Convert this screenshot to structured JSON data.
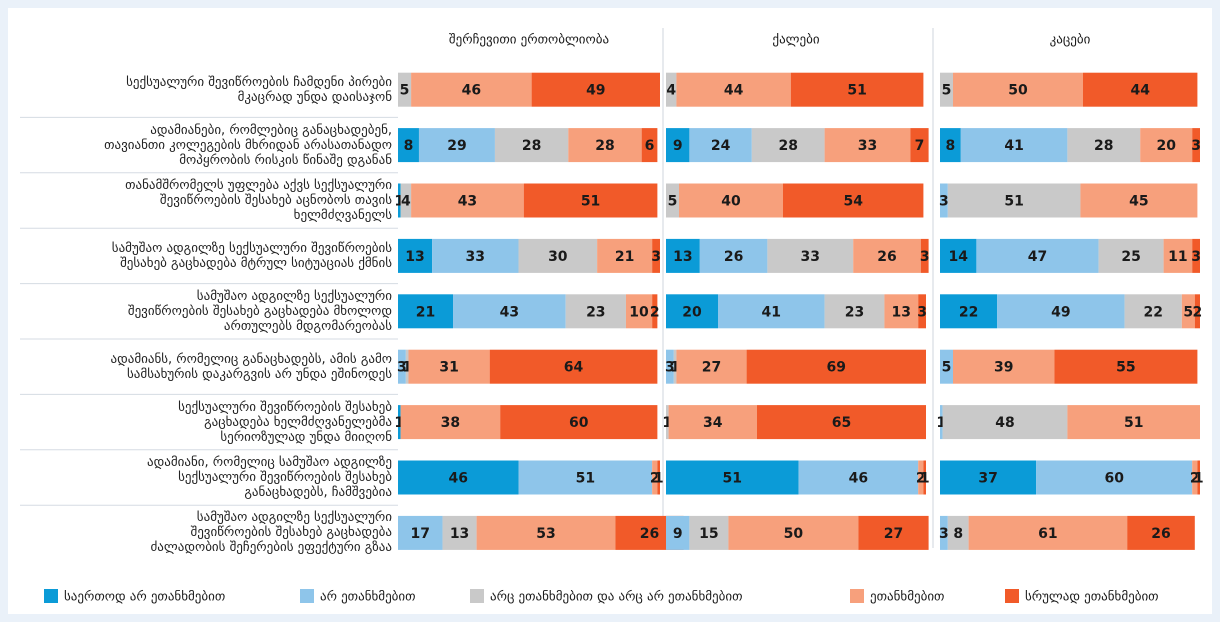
{
  "chart_data": {
    "type": "bar",
    "orientation": "horizontal",
    "stacked": true,
    "xlim": [
      0,
      100
    ],
    "categories": [
      "სექსუალური შევიწროების ჩამდენი პირები\nმკაცრად უნდა დაისაჯონ",
      "ადამიანები, რომლებიც განაცხადებენ,\nთავიანთი კოლეგების მხრიდან არასათანადო\nმოპყრობის რისკის წინაშე დგანან",
      "თანამშრომელს უფლება აქვს სექსუალური\nშევიწროების შესახებ აცნობოს თავის\nხელმძღვანელს",
      "სამუშაო ადგილზე სექსუალური შევიწროების\nშესახებ გაცხადება მტრულ სიტუაციას ქმნის",
      "სამუშაო ადგილზე სექსუალური\nშევიწროების  შესახებ გაცხადება მხოლოდ\nართულებს მდგომარეობას",
      "ადამიანს, რომელიც განაცხადებს, ამის გამო\nსამსახურის დაკარგვის არ უნდა ეშინოდეს",
      "სექსუალური შევიწროების შესახებ\nგაცხადება ხელმძღვანელებმა\nსერიოზულად უნდა მიიღონ",
      "ადამიანი, რომელიც სამუშაო ადგილზე\nსექსუალური შევიწროების შესახებ\nგანაცხადებს, ჩამშვებია",
      "სამუშაო ადგილზე სექსუალური\nშევიწროების შესახებ გაცხადება\nძალადობის შეჩერების ეფექტური გზაა"
    ],
    "series": [
      {
        "name": "საერთოდ არ ეთანხმებით",
        "color": "#0b9bd7"
      },
      {
        "name": "არ ეთანხმებით",
        "color": "#8ec5ea"
      },
      {
        "name": "არც ეთანხმებით და არც არ ეთანხმებით",
        "color": "#c9c9c9"
      },
      {
        "name": "ეთანხმებით",
        "color": "#f7a07c"
      },
      {
        "name": "სრულად ეთანხმებით",
        "color": "#f15a29"
      }
    ],
    "panels": [
      {
        "title": "შერჩევითი ერთობლიობა",
        "values": [
          [
            null,
            null,
            5,
            46,
            49
          ],
          [
            8,
            29,
            28,
            28,
            6
          ],
          [
            1,
            null,
            4,
            43,
            51
          ],
          [
            13,
            33,
            30,
            21,
            3
          ],
          [
            21,
            43,
            23,
            10,
            2
          ],
          [
            null,
            3,
            1,
            31,
            64
          ],
          [
            1,
            null,
            null,
            38,
            60
          ],
          [
            46,
            51,
            null,
            2,
            1
          ],
          [
            null,
            17,
            13,
            53,
            26
          ]
        ]
      },
      {
        "title": "ქალები",
        "values": [
          [
            null,
            null,
            4,
            44,
            51
          ],
          [
            9,
            24,
            28,
            33,
            7
          ],
          [
            null,
            null,
            5,
            40,
            54
          ],
          [
            13,
            26,
            33,
            26,
            3
          ],
          [
            20,
            41,
            23,
            13,
            3
          ],
          [
            null,
            3,
            1,
            27,
            69
          ],
          [
            null,
            null,
            1,
            34,
            65
          ],
          [
            51,
            46,
            null,
            2,
            1
          ],
          [
            null,
            9,
            15,
            50,
            27
          ]
        ]
      },
      {
        "title": "კაცები",
        "values": [
          [
            null,
            null,
            5,
            50,
            44
          ],
          [
            8,
            41,
            28,
            20,
            3
          ],
          [
            null,
            3,
            51,
            45,
            null
          ],
          [
            14,
            47,
            25,
            11,
            3
          ],
          [
            22,
            49,
            22,
            5,
            2
          ],
          [
            null,
            5,
            null,
            39,
            55
          ],
          [
            null,
            1,
            48,
            51,
            null
          ],
          [
            37,
            60,
            null,
            2,
            1
          ],
          [
            null,
            3,
            8,
            61,
            26
          ]
        ]
      }
    ]
  }
}
